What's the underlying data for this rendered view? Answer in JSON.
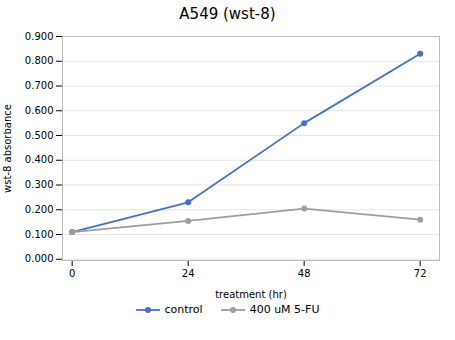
{
  "chart_data": {
    "type": "line",
    "title": "A549 (wst-8)",
    "x_label": "treatment (hr)",
    "y_label": "wst-8 absorbance",
    "x": [
      0,
      24,
      48,
      72
    ],
    "series": [
      {
        "name": "control",
        "color": "#4472C4",
        "marker": "circle",
        "values": [
          0.11,
          0.23,
          0.55,
          0.83
        ]
      },
      {
        "name": "400 uM 5-FU",
        "color": "#9E9E9E",
        "marker": "circle",
        "values": [
          0.11,
          0.155,
          0.205,
          0.16
        ]
      }
    ],
    "xlim": [
      -2,
      76
    ],
    "xticks": [
      0,
      24,
      48,
      72
    ],
    "ylim": [
      -0.005,
      0.9
    ],
    "yticks": [
      {
        "value": 0.0,
        "label": "0.000"
      },
      {
        "value": 0.1,
        "label": "0.100"
      },
      {
        "value": 0.2,
        "label": "0.200"
      },
      {
        "value": 0.3,
        "label": "0.300"
      },
      {
        "value": 0.4,
        "label": "0.400"
      },
      {
        "value": 0.5,
        "label": "0.500"
      },
      {
        "value": 0.6,
        "label": "0.600"
      },
      {
        "value": 0.7,
        "label": "0.700"
      },
      {
        "value": 0.8,
        "label": "0.800"
      },
      {
        "value": 0.9,
        "label": "0.900"
      }
    ],
    "grid": true,
    "legend": "bottom"
  }
}
